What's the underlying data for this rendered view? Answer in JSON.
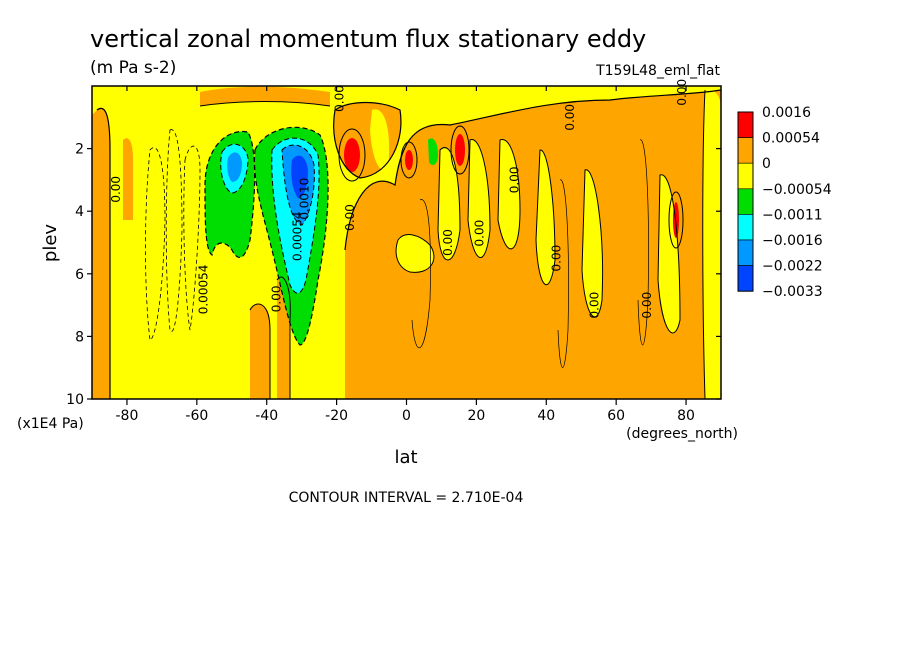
{
  "chart_data": {
    "type": "heatmap",
    "title": "vertical zonal momentum flux stationary eddy",
    "units": "(m Pa s-2)",
    "run_label": "T159L48_eml_flat",
    "xlabel": "lat",
    "x_unit_label": "(degrees_north)",
    "ylabel": "plev",
    "y_unit_label": "(x1E4 Pa)",
    "xlim": [
      -90,
      90
    ],
    "ylim": [
      10,
      0
    ],
    "x_ticks": [
      "-80",
      "-60",
      "-40",
      "-20",
      "0",
      "20",
      "40",
      "60",
      "80"
    ],
    "y_ticks": [
      "2",
      "4",
      "6",
      "8",
      "10"
    ],
    "contour_interval_text": "CONTOUR INTERVAL = 2.710E-04",
    "legend": [
      {
        "label": "0.0016",
        "color": "#ff0000"
      },
      {
        "label": "0.00054",
        "color": "#ffa500"
      },
      {
        "label": "0",
        "color": "#ffff00"
      },
      {
        "label": "−0.00054",
        "color": "#00dd00"
      },
      {
        "label": "−0.0011",
        "color": "#00ffff"
      },
      {
        "label": "−0.0016",
        "color": "#0099ff"
      },
      {
        "label": "−0.0022",
        "color": "#0044ff"
      },
      {
        "label": "−0.0033",
        "color": "#0044ff"
      }
    ],
    "contour_labels": [
      {
        "text": "0.00",
        "lat": -82,
        "plev": 3.3
      },
      {
        "text": "0.00054",
        "lat": -57,
        "plev": 6.5
      },
      {
        "text": "0.00",
        "lat": -36,
        "plev": 6.8
      },
      {
        "text": "0.00054",
        "lat": -30,
        "plev": 4.8
      },
      {
        "text": "0.0010",
        "lat": -28,
        "plev": 3.6
      },
      {
        "text": "0.00",
        "lat": -15,
        "plev": 4.2
      },
      {
        "text": "0.00",
        "lat": 13,
        "plev": 5.0
      },
      {
        "text": "0.00",
        "lat": 22,
        "plev": 4.7
      },
      {
        "text": "0.00",
        "lat": 32,
        "plev": 3.0
      },
      {
        "text": "0.00",
        "lat": 44,
        "plev": 5.5
      },
      {
        "text": "0.00",
        "lat": 55,
        "plev": 7.0
      },
      {
        "text": "0.00",
        "lat": 70,
        "plev": 7.0
      },
      {
        "text": "0.00",
        "lat": 48,
        "plev": 1.0
      },
      {
        "text": "0.00",
        "lat": -18,
        "plev": 0.4
      },
      {
        "text": "0.00",
        "lat": 80,
        "plev": 0.2
      }
    ],
    "features": [
      {
        "sign": "neg",
        "lat": -51,
        "plev": 2.5,
        "value": -0.0016
      },
      {
        "sign": "neg",
        "lat": -29,
        "plev": 2.9,
        "value": -0.0022
      },
      {
        "sign": "pos",
        "lat": -16,
        "plev": 2.3,
        "value": 0.0016
      },
      {
        "sign": "pos",
        "lat": 0,
        "plev": 2.4,
        "value": 0.0016
      },
      {
        "sign": "pos",
        "lat": 15,
        "plev": 2.2,
        "value": 0.0016
      },
      {
        "sign": "pos",
        "lat": 78,
        "plev": 4.4,
        "value": 0.0016
      },
      {
        "sign": "neg",
        "lat": 7,
        "plev": 2.4,
        "value": -0.00054
      }
    ]
  }
}
